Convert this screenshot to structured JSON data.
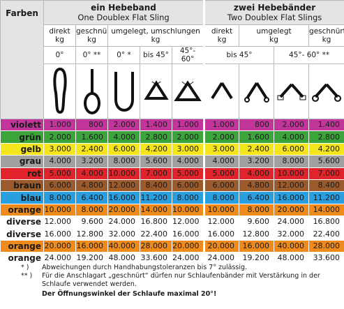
{
  "header": {
    "farben": "Farben",
    "group1": {
      "title": "ein Hebeband",
      "subtitle": "One Doublex Flat Sling"
    },
    "group2": {
      "title": "zwei Hebebänder",
      "subtitle": "Two Doublex Flat Slings"
    },
    "group1_methods": [
      "direkt\nkg",
      "geschnürt\nkg",
      "umgelegt, umschlungen\nkg"
    ],
    "group2_methods": [
      "direkt\nkg",
      "umgelegt\nkg",
      "geschnürt\nkg"
    ],
    "group1_angles": [
      "0°",
      "0° **",
      "0° *",
      "bis 45°",
      "45°- 60°"
    ],
    "group2_angles": [
      "bis 45°",
      "45°- 60° **"
    ]
  },
  "table": {
    "rows": [
      {
        "name": "violett",
        "color": "#c2369c",
        "text_color": "#1a1a1a",
        "values": [
          "1.000",
          "800",
          "2.000",
          "1.400",
          "1.000",
          "1.000",
          "800",
          "2.000",
          "1.400"
        ]
      },
      {
        "name": "grün",
        "color": "#3ba53b",
        "text_color": "#1a1a1a",
        "values": [
          "2.000",
          "1.600",
          "4.000",
          "2.800",
          "2.000",
          "2.000",
          "1.600",
          "4.000",
          "2.800"
        ]
      },
      {
        "name": "gelb",
        "color": "#f4e51c",
        "text_color": "#1a1a1a",
        "values": [
          "3.000",
          "2.400",
          "6.000",
          "4.200",
          "3.000",
          "3.000",
          "2.400",
          "6.000",
          "4.200"
        ]
      },
      {
        "name": "grau",
        "color": "#a0a0a0",
        "text_color": "#1a1a1a",
        "values": [
          "4.000",
          "3.200",
          "8.000",
          "5.600",
          "4.000",
          "4.000",
          "3.200",
          "8.000",
          "5.600"
        ]
      },
      {
        "name": "rot",
        "color": "#e1232b",
        "text_color": "#1a1a1a",
        "values": [
          "5.000",
          "4.000",
          "10.000",
          "7.000",
          "5.000",
          "5.000",
          "4.000",
          "10.000",
          "7.000"
        ]
      },
      {
        "name": "braun",
        "color": "#9b5a2c",
        "text_color": "#1a1a1a",
        "values": [
          "6.000",
          "4.800",
          "12.000",
          "8.400",
          "6.000",
          "6.000",
          "4.800",
          "12.000",
          "8.400"
        ]
      },
      {
        "name": "blau",
        "color": "#2a9fe0",
        "text_color": "#1a1a1a",
        "values": [
          "8.000",
          "6.400",
          "16.000",
          "11.200",
          "8.000",
          "8.000",
          "6.400",
          "16.000",
          "11.200"
        ]
      },
      {
        "name": "orange",
        "color": "#ef8a1d",
        "text_color": "#1a1a1a",
        "values": [
          "10.000",
          "8.000",
          "20.000",
          "14.000",
          "10.000",
          "10.000",
          "8.000",
          "20.000",
          "14.000"
        ]
      },
      {
        "name": "diverse",
        "color": "#ffffff",
        "text_color": "#1a1a1a",
        "values": [
          "12.000",
          "9.600",
          "24.000",
          "16.800",
          "12.000",
          "12.000",
          "9.600",
          "24.000",
          "16.800"
        ]
      },
      {
        "name": "diverse",
        "color": "#ffffff",
        "text_color": "#1a1a1a",
        "values": [
          "16.000",
          "12.800",
          "32.000",
          "22.400",
          "16.000",
          "16.000",
          "12.800",
          "32.000",
          "22.400"
        ]
      },
      {
        "name": "orange",
        "color": "#ef8a1d",
        "text_color": "#1a1a1a",
        "values": [
          "20.000",
          "16.000",
          "40.000",
          "28.000",
          "20.000",
          "20.000",
          "16.000",
          "40.000",
          "28.000"
        ]
      },
      {
        "name": "orange",
        "color": "#ffffff",
        "text_color": "#1a1a1a",
        "values": [
          "24.000",
          "19.200",
          "48.000",
          "33.600",
          "24.000",
          "24.000",
          "19.200",
          "48.000",
          "33.600"
        ]
      }
    ]
  },
  "notes": [
    {
      "mark": "*  )",
      "text": "Abweichungen durch Handhabungstoleranzen bis 7° zulässig."
    },
    {
      "mark": "** )",
      "text": "Für die Anschlagart „geschnürt“ dürfen nur Schlaufenbänder mit Verstärkung in  der Schlaufe verwendet werden."
    }
  ],
  "warning": "Der Öffnungswinkel der Schlaufe maximal 20°!"
}
